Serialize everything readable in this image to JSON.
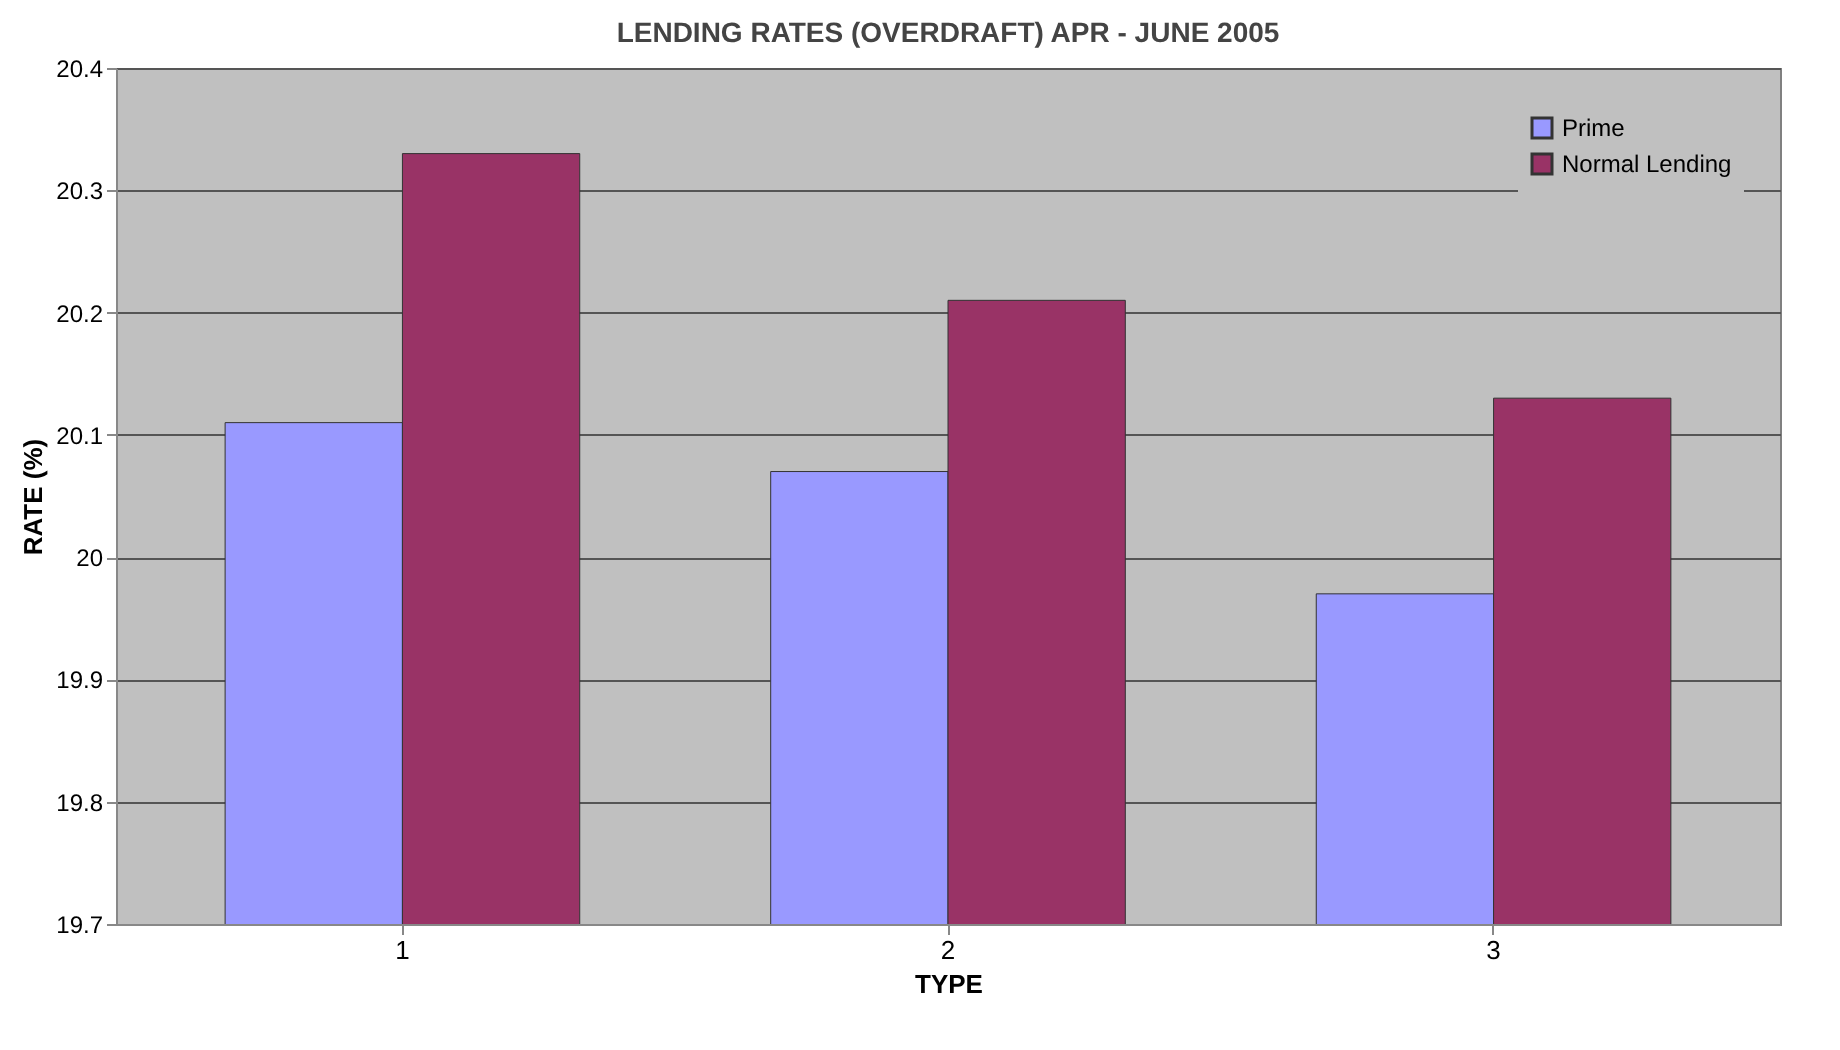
{
  "chart_data": {
    "type": "bar",
    "title": "LENDING RATES (OVERDRAFT) APR - JUNE 2005",
    "xlabel": "TYPE",
    "ylabel": "RATE (%)",
    "categories": [
      "1",
      "2",
      "3"
    ],
    "series": [
      {
        "name": "Prime",
        "color": "#9999ff",
        "values": [
          20.11,
          20.07,
          19.97
        ]
      },
      {
        "name": "Normal Lending",
        "color": "#993366",
        "values": [
          20.33,
          20.21,
          20.13
        ]
      }
    ],
    "ylim": [
      19.7,
      20.4
    ],
    "yticks": [
      19.7,
      19.8,
      19.9,
      20,
      20.1,
      20.2,
      20.3,
      20.4
    ],
    "grid": "y",
    "legend": "top right"
  }
}
